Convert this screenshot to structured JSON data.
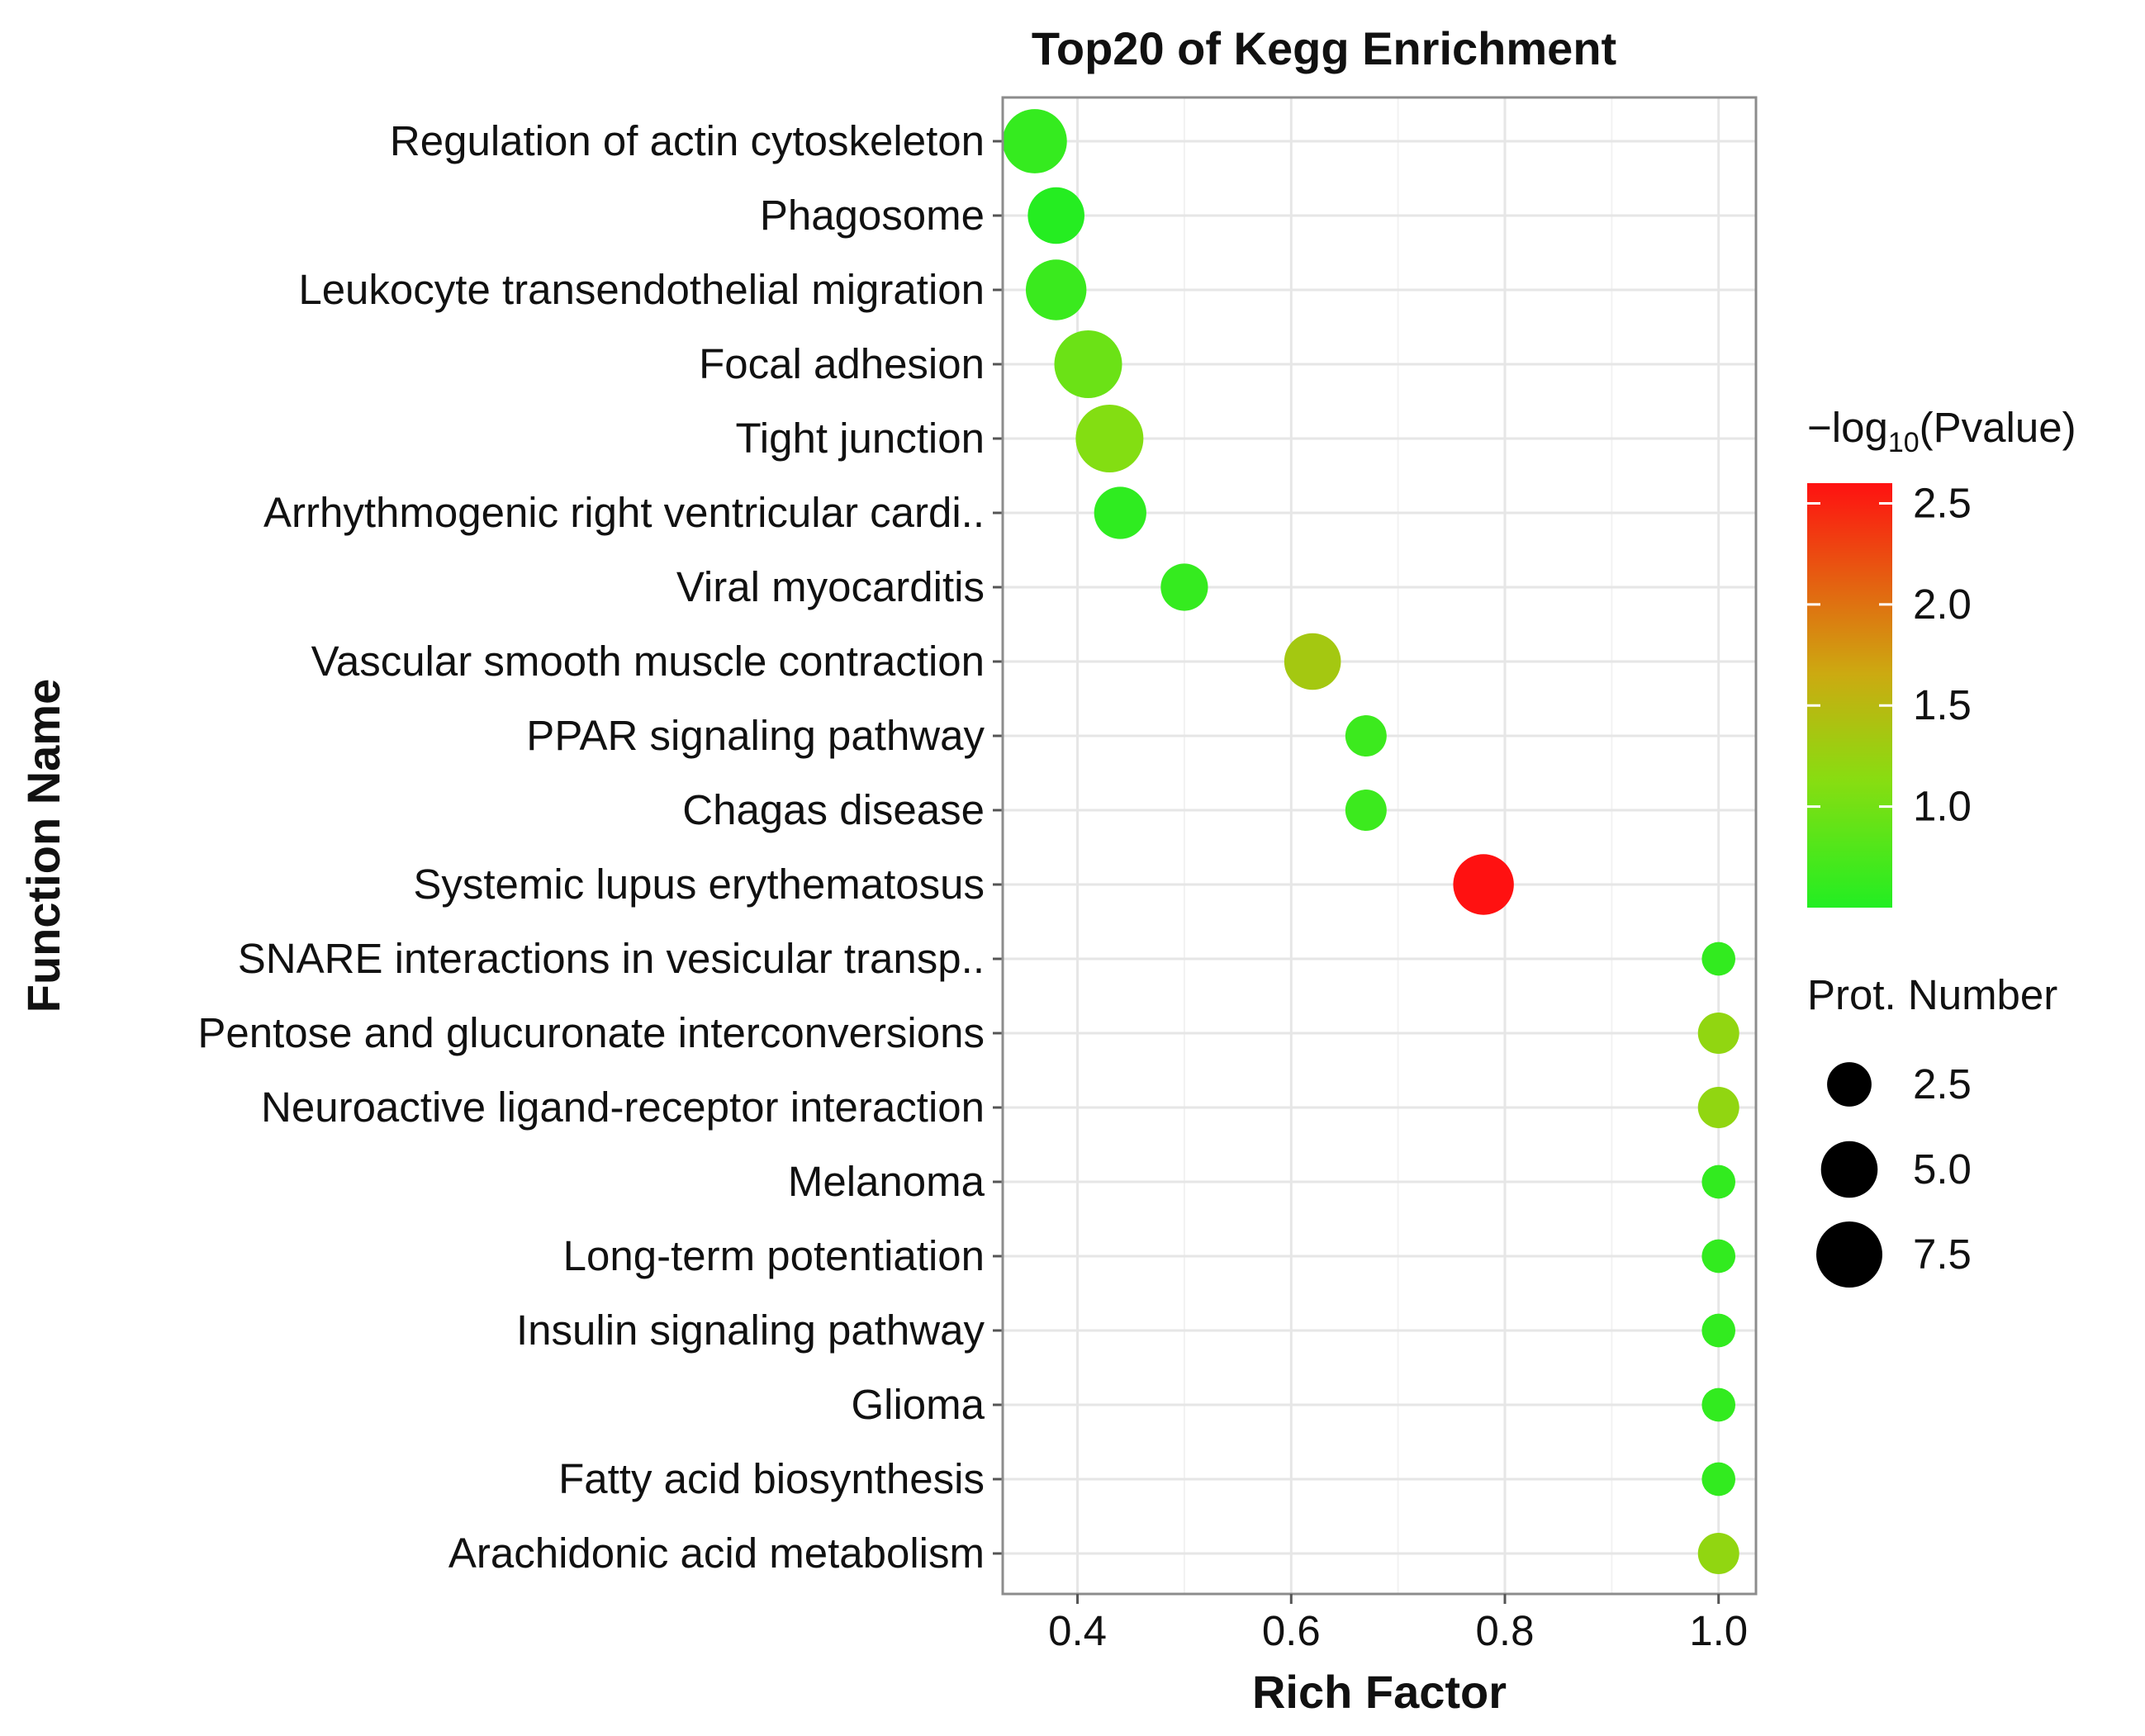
{
  "chart_data": {
    "type": "scatter",
    "title": "Top20 of Kegg Enrichment",
    "xlabel": "Rich Factor",
    "ylabel": "Function Name",
    "xlim": [
      0.33,
      1.035
    ],
    "xticks": [
      0.4,
      0.6,
      0.8,
      1.0
    ],
    "xtick_labels": [
      "0.4",
      "0.6",
      "0.8",
      "1.0"
    ],
    "grid": true,
    "points": [
      {
        "name": "Regulation of actin cytoskeleton",
        "rich_factor": 0.36,
        "neg_log10_p": 0.62,
        "count": 7
      },
      {
        "name": "Phagosome",
        "rich_factor": 0.38,
        "neg_log10_p": 0.52,
        "count": 5
      },
      {
        "name": "Leukocyte transendothelial migration",
        "rich_factor": 0.38,
        "neg_log10_p": 0.65,
        "count": 6
      },
      {
        "name": "Focal adhesion",
        "rich_factor": 0.41,
        "neg_log10_p": 0.95,
        "count": 8
      },
      {
        "name": "Tight junction",
        "rich_factor": 0.43,
        "neg_log10_p": 1.1,
        "count": 8
      },
      {
        "name": "Arrhythmogenic right ventricular cardi..",
        "rich_factor": 0.44,
        "neg_log10_p": 0.58,
        "count": 4
      },
      {
        "name": "Viral myocarditis",
        "rich_factor": 0.5,
        "neg_log10_p": 0.62,
        "count": 3
      },
      {
        "name": "Vascular smooth muscle contraction",
        "rich_factor": 0.62,
        "neg_log10_p": 1.35,
        "count": 5
      },
      {
        "name": "PPAR signaling pathway",
        "rich_factor": 0.67,
        "neg_log10_p": 0.66,
        "count": 2
      },
      {
        "name": "Chagas disease",
        "rich_factor": 0.67,
        "neg_log10_p": 0.66,
        "count": 2
      },
      {
        "name": "Systemic lupus erythematosus",
        "rich_factor": 0.78,
        "neg_log10_p": 2.6,
        "count": 6
      },
      {
        "name": "SNARE interactions in vesicular transp..",
        "rich_factor": 1.0,
        "neg_log10_p": 0.6,
        "count": 1
      },
      {
        "name": "Pentose and glucuronate interconversions",
        "rich_factor": 1.0,
        "neg_log10_p": 1.2,
        "count": 2
      },
      {
        "name": "Neuroactive ligand-receptor interaction",
        "rich_factor": 1.0,
        "neg_log10_p": 1.2,
        "count": 2
      },
      {
        "name": "Melanoma",
        "rich_factor": 1.0,
        "neg_log10_p": 0.6,
        "count": 1
      },
      {
        "name": "Long-term potentiation",
        "rich_factor": 1.0,
        "neg_log10_p": 0.6,
        "count": 1
      },
      {
        "name": "Insulin signaling pathway",
        "rich_factor": 1.0,
        "neg_log10_p": 0.6,
        "count": 1
      },
      {
        "name": "Glioma",
        "rich_factor": 1.0,
        "neg_log10_p": 0.6,
        "count": 1
      },
      {
        "name": "Fatty acid biosynthesis",
        "rich_factor": 1.0,
        "neg_log10_p": 0.6,
        "count": 1
      },
      {
        "name": "Arachidonic acid metabolism",
        "rich_factor": 1.0,
        "neg_log10_p": 1.2,
        "count": 2
      }
    ],
    "color_legend": {
      "title_prefix": "−log",
      "title_sub": "10",
      "title_suffix": "(Pvalue)",
      "range": [
        0.5,
        2.6
      ],
      "ticks": [
        2.5,
        2.0,
        1.5,
        1.0
      ],
      "tick_labels": [
        "2.5",
        "2.0",
        "1.5",
        "1.0"
      ],
      "low_color": "#22ee22",
      "mid_color": "#88dd11",
      "mid2_color": "#ccaa11",
      "high_color": "#ff1111"
    },
    "size_legend": {
      "title": "Prot. Number",
      "values": [
        2.5,
        5.0,
        7.5
      ],
      "labels": [
        "2.5",
        "5.0",
        "7.5"
      ],
      "color": "#000000"
    },
    "colors": {
      "grid_major": "#e6e6e6",
      "grid_minor": "#f2f2f2",
      "panel_border": "#8c8c8c",
      "tick": "#555555"
    }
  }
}
